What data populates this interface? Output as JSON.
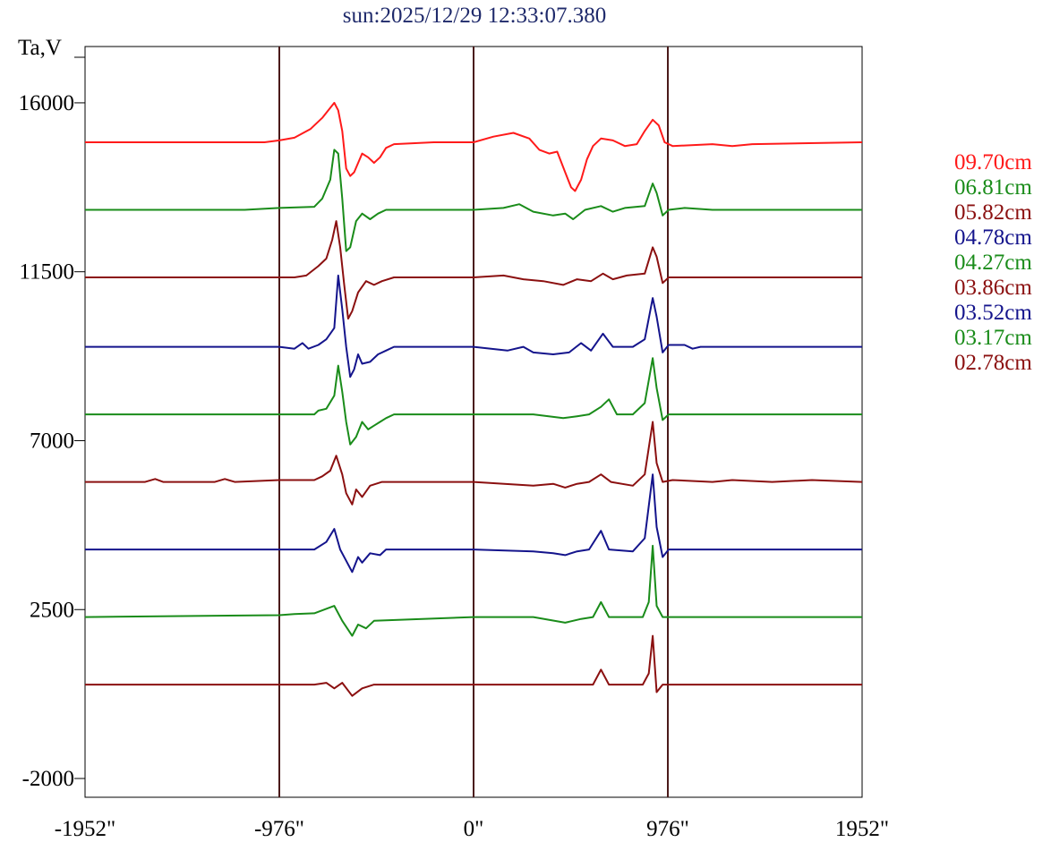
{
  "title": "sun:2025/12/29 12:33:07.380",
  "chart_data": {
    "type": "line",
    "title": "sun:2025/12/29 12:33:07.380",
    "ylabel": "Ta,V",
    "xlabel": "",
    "xlim": [
      -1952,
      1952
    ],
    "ylim": [
      -2500,
      17500
    ],
    "x_ticks": [
      "-1952\"",
      "-976\"",
      "0\"",
      "976\"",
      "1952\""
    ],
    "x_tick_values": [
      -1952,
      -976,
      0,
      976,
      1952
    ],
    "y_ticks": [
      "16000",
      "11500",
      "7000",
      "2500",
      "-2000"
    ],
    "y_tick_values": [
      16000,
      11500,
      7000,
      2500,
      -2000
    ],
    "vertical_lines": [
      -976,
      0,
      976
    ],
    "grid": false,
    "legend_position": "right",
    "series": [
      {
        "name": "09.70cm",
        "color": "#ff1a1a",
        "baseline": 14950,
        "points": [
          [
            -1952,
            0
          ],
          [
            -1050,
            0
          ],
          [
            -976,
            50
          ],
          [
            -900,
            120
          ],
          [
            -820,
            350
          ],
          [
            -760,
            650
          ],
          [
            -700,
            1050
          ],
          [
            -680,
            850
          ],
          [
            -660,
            300
          ],
          [
            -640,
            -700
          ],
          [
            -620,
            -900
          ],
          [
            -600,
            -800
          ],
          [
            -560,
            -300
          ],
          [
            -530,
            -400
          ],
          [
            -500,
            -550
          ],
          [
            -470,
            -400
          ],
          [
            -440,
            -150
          ],
          [
            -400,
            -50
          ],
          [
            -200,
            0
          ],
          [
            0,
            0
          ],
          [
            100,
            150
          ],
          [
            200,
            250
          ],
          [
            280,
            100
          ],
          [
            330,
            -200
          ],
          [
            380,
            -300
          ],
          [
            420,
            -250
          ],
          [
            460,
            -800
          ],
          [
            490,
            -1200
          ],
          [
            510,
            -1300
          ],
          [
            540,
            -1000
          ],
          [
            570,
            -450
          ],
          [
            600,
            -100
          ],
          [
            640,
            100
          ],
          [
            700,
            50
          ],
          [
            760,
            -100
          ],
          [
            820,
            -50
          ],
          [
            860,
            300
          ],
          [
            900,
            600
          ],
          [
            930,
            450
          ],
          [
            960,
            0
          ],
          [
            1000,
            -100
          ],
          [
            1200,
            -50
          ],
          [
            1300,
            -100
          ],
          [
            1400,
            -50
          ],
          [
            1952,
            0
          ]
        ]
      },
      {
        "name": "06.81cm",
        "color": "#1a8c1a",
        "baseline": 13150,
        "points": [
          [
            -1952,
            0
          ],
          [
            -1150,
            0
          ],
          [
            -976,
            50
          ],
          [
            -800,
            80
          ],
          [
            -760,
            300
          ],
          [
            -720,
            800
          ],
          [
            -700,
            1600
          ],
          [
            -680,
            1500
          ],
          [
            -660,
            300
          ],
          [
            -640,
            -1100
          ],
          [
            -620,
            -1000
          ],
          [
            -590,
            -300
          ],
          [
            -560,
            -100
          ],
          [
            -520,
            -250
          ],
          [
            -480,
            -100
          ],
          [
            -440,
            0
          ],
          [
            0,
            0
          ],
          [
            150,
            50
          ],
          [
            230,
            150
          ],
          [
            300,
            -50
          ],
          [
            400,
            -150
          ],
          [
            460,
            -100
          ],
          [
            500,
            -250
          ],
          [
            560,
            0
          ],
          [
            640,
            100
          ],
          [
            700,
            -50
          ],
          [
            760,
            50
          ],
          [
            860,
            100
          ],
          [
            900,
            700
          ],
          [
            920,
            450
          ],
          [
            950,
            -150
          ],
          [
            980,
            0
          ],
          [
            1060,
            50
          ],
          [
            1200,
            0
          ],
          [
            1952,
            0
          ]
        ]
      },
      {
        "name": "05.82cm",
        "color": "#8b1010",
        "baseline": 11350,
        "points": [
          [
            -1952,
            0
          ],
          [
            -900,
            0
          ],
          [
            -840,
            50
          ],
          [
            -780,
            300
          ],
          [
            -740,
            500
          ],
          [
            -710,
            1000
          ],
          [
            -690,
            1500
          ],
          [
            -670,
            800
          ],
          [
            -650,
            -200
          ],
          [
            -630,
            -1100
          ],
          [
            -610,
            -900
          ],
          [
            -580,
            -400
          ],
          [
            -540,
            -100
          ],
          [
            -500,
            -200
          ],
          [
            -460,
            -100
          ],
          [
            -400,
            0
          ],
          [
            0,
            0
          ],
          [
            150,
            50
          ],
          [
            250,
            -50
          ],
          [
            350,
            -100
          ],
          [
            450,
            -200
          ],
          [
            520,
            -50
          ],
          [
            590,
            -100
          ],
          [
            650,
            100
          ],
          [
            700,
            -50
          ],
          [
            770,
            50
          ],
          [
            860,
            100
          ],
          [
            900,
            800
          ],
          [
            920,
            550
          ],
          [
            950,
            -150
          ],
          [
            980,
            0
          ],
          [
            1952,
            0
          ]
        ]
      },
      {
        "name": "04.78cm",
        "color": "#14148c",
        "baseline": 9500,
        "points": [
          [
            -1952,
            0
          ],
          [
            -976,
            0
          ],
          [
            -900,
            -50
          ],
          [
            -860,
            100
          ],
          [
            -830,
            -50
          ],
          [
            -780,
            50
          ],
          [
            -740,
            200
          ],
          [
            -700,
            500
          ],
          [
            -680,
            1900
          ],
          [
            -660,
            1000
          ],
          [
            -640,
            0
          ],
          [
            -620,
            -800
          ],
          [
            -600,
            -600
          ],
          [
            -580,
            -200
          ],
          [
            -560,
            -450
          ],
          [
            -520,
            -400
          ],
          [
            -480,
            -200
          ],
          [
            -440,
            -100
          ],
          [
            -400,
            0
          ],
          [
            0,
            0
          ],
          [
            170,
            -100
          ],
          [
            250,
            0
          ],
          [
            300,
            -150
          ],
          [
            400,
            -200
          ],
          [
            480,
            -150
          ],
          [
            540,
            100
          ],
          [
            590,
            -100
          ],
          [
            650,
            350
          ],
          [
            700,
            0
          ],
          [
            800,
            0
          ],
          [
            860,
            200
          ],
          [
            900,
            1300
          ],
          [
            920,
            800
          ],
          [
            950,
            -150
          ],
          [
            980,
            50
          ],
          [
            1060,
            50
          ],
          [
            1100,
            -50
          ],
          [
            1140,
            0
          ],
          [
            1952,
            0
          ]
        ]
      },
      {
        "name": "04.27cm",
        "color": "#1a8c1a",
        "baseline": 7700,
        "points": [
          [
            -1952,
            0
          ],
          [
            -800,
            0
          ],
          [
            -780,
            100
          ],
          [
            -740,
            150
          ],
          [
            -700,
            500
          ],
          [
            -680,
            1300
          ],
          [
            -660,
            600
          ],
          [
            -640,
            -200
          ],
          [
            -620,
            -800
          ],
          [
            -590,
            -600
          ],
          [
            -560,
            -200
          ],
          [
            -530,
            -400
          ],
          [
            -500,
            -300
          ],
          [
            -470,
            -200
          ],
          [
            -440,
            -100
          ],
          [
            -400,
            0
          ],
          [
            0,
            0
          ],
          [
            300,
            0
          ],
          [
            450,
            -100
          ],
          [
            520,
            -50
          ],
          [
            580,
            0
          ],
          [
            640,
            200
          ],
          [
            680,
            400
          ],
          [
            720,
            0
          ],
          [
            800,
            0
          ],
          [
            860,
            300
          ],
          [
            900,
            1500
          ],
          [
            920,
            700
          ],
          [
            950,
            -150
          ],
          [
            980,
            0
          ],
          [
            1952,
            0
          ]
        ]
      },
      {
        "name": "03.86cm",
        "color": "#8b1010",
        "baseline": 5900,
        "points": [
          [
            -1952,
            0
          ],
          [
            -1650,
            0
          ],
          [
            -1600,
            80
          ],
          [
            -1560,
            0
          ],
          [
            -1300,
            0
          ],
          [
            -1250,
            80
          ],
          [
            -1200,
            0
          ],
          [
            -976,
            50
          ],
          [
            -800,
            50
          ],
          [
            -760,
            150
          ],
          [
            -720,
            300
          ],
          [
            -690,
            700
          ],
          [
            -660,
            200
          ],
          [
            -640,
            -300
          ],
          [
            -610,
            -600
          ],
          [
            -590,
            -200
          ],
          [
            -560,
            -400
          ],
          [
            -520,
            -100
          ],
          [
            -460,
            0
          ],
          [
            0,
            0
          ],
          [
            300,
            -100
          ],
          [
            400,
            -50
          ],
          [
            460,
            -150
          ],
          [
            520,
            -50
          ],
          [
            580,
            0
          ],
          [
            640,
            200
          ],
          [
            690,
            0
          ],
          [
            800,
            -100
          ],
          [
            860,
            200
          ],
          [
            900,
            1600
          ],
          [
            920,
            500
          ],
          [
            950,
            0
          ],
          [
            1000,
            50
          ],
          [
            1200,
            0
          ],
          [
            1300,
            50
          ],
          [
            1500,
            0
          ],
          [
            1700,
            50
          ],
          [
            1952,
            0
          ]
        ]
      },
      {
        "name": "03.52cm",
        "color": "#14148c",
        "baseline": 4100,
        "points": [
          [
            -1952,
            0
          ],
          [
            -976,
            0
          ],
          [
            -800,
            0
          ],
          [
            -740,
            200
          ],
          [
            -700,
            550
          ],
          [
            -670,
            0
          ],
          [
            -640,
            -300
          ],
          [
            -610,
            -600
          ],
          [
            -580,
            -200
          ],
          [
            -560,
            -350
          ],
          [
            -520,
            -100
          ],
          [
            -470,
            -150
          ],
          [
            -440,
            0
          ],
          [
            0,
            0
          ],
          [
            300,
            -50
          ],
          [
            400,
            -100
          ],
          [
            460,
            -150
          ],
          [
            520,
            -50
          ],
          [
            580,
            0
          ],
          [
            640,
            500
          ],
          [
            680,
            0
          ],
          [
            800,
            -50
          ],
          [
            860,
            300
          ],
          [
            900,
            2000
          ],
          [
            920,
            600
          ],
          [
            950,
            -200
          ],
          [
            980,
            0
          ],
          [
            1952,
            0
          ]
        ]
      },
      {
        "name": "03.17cm",
        "color": "#1a8c1a",
        "baseline": 2300,
        "points": [
          [
            -1952,
            0
          ],
          [
            -976,
            50
          ],
          [
            -900,
            80
          ],
          [
            -800,
            100
          ],
          [
            -700,
            300
          ],
          [
            -660,
            -100
          ],
          [
            -610,
            -500
          ],
          [
            -580,
            -200
          ],
          [
            -540,
            -300
          ],
          [
            -500,
            -100
          ],
          [
            0,
            0
          ],
          [
            300,
            0
          ],
          [
            460,
            -150
          ],
          [
            540,
            -50
          ],
          [
            600,
            0
          ],
          [
            640,
            400
          ],
          [
            680,
            0
          ],
          [
            850,
            0
          ],
          [
            880,
            400
          ],
          [
            900,
            1900
          ],
          [
            920,
            300
          ],
          [
            950,
            0
          ],
          [
            1952,
            0
          ]
        ]
      },
      {
        "name": "02.78cm",
        "color": "#8b1010",
        "baseline": 500,
        "points": [
          [
            -1952,
            0
          ],
          [
            -800,
            0
          ],
          [
            -740,
            50
          ],
          [
            -700,
            -100
          ],
          [
            -660,
            50
          ],
          [
            -610,
            -300
          ],
          [
            -560,
            -100
          ],
          [
            -500,
            0
          ],
          [
            0,
            0
          ],
          [
            500,
            0
          ],
          [
            600,
            0
          ],
          [
            640,
            400
          ],
          [
            680,
            0
          ],
          [
            850,
            0
          ],
          [
            880,
            300
          ],
          [
            900,
            1300
          ],
          [
            920,
            -200
          ],
          [
            950,
            0
          ],
          [
            1952,
            0
          ]
        ]
      }
    ]
  }
}
